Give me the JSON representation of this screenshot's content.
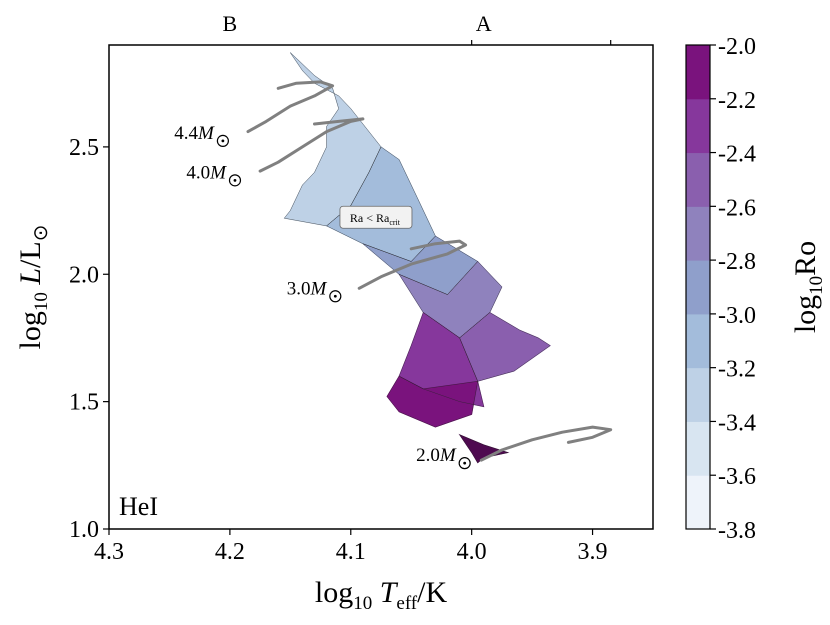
{
  "chart_data": {
    "type": "heatmap",
    "title": "",
    "x": {
      "label_parts": [
        "log",
        "10",
        "T",
        "eff",
        "/K"
      ],
      "lim": [
        4.3,
        3.85
      ],
      "ticks": [
        4.3,
        4.2,
        4.1,
        4.0,
        3.9
      ],
      "tick_labels": [
        "4.3",
        "4.2",
        "4.1",
        "4.0",
        "3.9"
      ]
    },
    "y": {
      "label_parts": [
        "log",
        "10",
        "L",
        "/L",
        "⊙"
      ],
      "lim": [
        1.0,
        2.9
      ],
      "ticks": [
        1.0,
        1.5,
        2.0,
        2.5
      ],
      "tick_labels": [
        "1.0",
        "1.5",
        "2.0",
        "2.5"
      ]
    },
    "top_axis": {
      "labels": [
        {
          "text": "B",
          "x": 4.2
        },
        {
          "text": "A",
          "x": 3.99
        }
      ],
      "ticks": [
        4.0,
        3.885
      ]
    },
    "colorbar": {
      "label_parts": [
        "log",
        "10",
        "Ro"
      ],
      "levels": [
        -3.8,
        -3.6,
        -3.4,
        -3.2,
        -3.0,
        -2.8,
        -2.6,
        -2.4,
        -2.2,
        -2.0
      ],
      "tick_labels": [
        "-3.8",
        "-3.6",
        "-3.4",
        "-3.2",
        "-3.0",
        "-2.8",
        "-2.6",
        "-2.4",
        "-2.2",
        "-2.0"
      ],
      "colors": [
        "#eef3fa",
        "#d8e5f1",
        "#bed1e6",
        "#a3bcdb",
        "#8f9fcb",
        "#8f82bd",
        "#8a5fae",
        "#86379c",
        "#7a137d",
        "#4e0a50"
      ]
    },
    "region_label": "HeI",
    "annotation_box": {
      "main": "Ra < Ra",
      "sub": "crit",
      "x": 4.08,
      "y": 2.22
    },
    "tracks": [
      {
        "name": "4.4M",
        "label": "4.4",
        "label_at": [
          4.2,
          2.555
        ],
        "points": [
          [
            4.185,
            2.56
          ],
          [
            4.17,
            2.6
          ],
          [
            4.15,
            2.66
          ],
          [
            4.13,
            2.7
          ],
          [
            4.115,
            2.74
          ],
          [
            4.125,
            2.755
          ],
          [
            4.145,
            2.75
          ],
          [
            4.16,
            2.73
          ]
        ]
      },
      {
        "name": "4.0M",
        "label": "4.0",
        "label_at": [
          4.19,
          2.4
        ],
        "points": [
          [
            4.175,
            2.405
          ],
          [
            4.16,
            2.44
          ],
          [
            4.14,
            2.5
          ],
          [
            4.12,
            2.56
          ],
          [
            4.1,
            2.6
          ],
          [
            4.09,
            2.61
          ],
          [
            4.11,
            2.6
          ],
          [
            4.13,
            2.59
          ]
        ]
      },
      {
        "name": "3.0M",
        "label": "3.0",
        "label_at": [
          4.107,
          1.945
        ],
        "points": [
          [
            4.093,
            1.945
          ],
          [
            4.075,
            1.99
          ],
          [
            4.05,
            2.04
          ],
          [
            4.02,
            2.08
          ],
          [
            4.005,
            2.115
          ],
          [
            4.01,
            2.13
          ],
          [
            4.03,
            2.12
          ],
          [
            4.05,
            2.1
          ]
        ]
      },
      {
        "name": "2.0M",
        "label": "2.0",
        "label_at": [
          4.0,
          1.29
        ],
        "points": [
          [
            3.992,
            1.27
          ],
          [
            3.975,
            1.31
          ],
          [
            3.95,
            1.35
          ],
          [
            3.925,
            1.38
          ],
          [
            3.9,
            1.4
          ],
          [
            3.885,
            1.39
          ],
          [
            3.9,
            1.36
          ],
          [
            3.92,
            1.34
          ]
        ]
      }
    ],
    "bands": [
      {
        "level": -3.4,
        "poly": [
          [
            4.15,
            2.87
          ],
          [
            4.13,
            2.78
          ],
          [
            4.115,
            2.73
          ],
          [
            4.11,
            2.65
          ],
          [
            4.12,
            2.58
          ],
          [
            4.12,
            2.5
          ],
          [
            4.13,
            2.4
          ],
          [
            4.14,
            2.35
          ],
          [
            4.15,
            2.25
          ],
          [
            4.155,
            2.22
          ],
          [
            4.12,
            2.19
          ],
          [
            4.1,
            2.27
          ],
          [
            4.085,
            2.4
          ],
          [
            4.075,
            2.5
          ],
          [
            4.09,
            2.59
          ],
          [
            4.1,
            2.65
          ],
          [
            4.11,
            2.7
          ],
          [
            4.13,
            2.75
          ],
          [
            4.14,
            2.8
          ]
        ]
      },
      {
        "level": -3.2,
        "poly": [
          [
            4.12,
            2.19
          ],
          [
            4.09,
            2.12
          ],
          [
            4.05,
            2.05
          ],
          [
            4.03,
            2.15
          ],
          [
            4.045,
            2.3
          ],
          [
            4.06,
            2.45
          ],
          [
            4.075,
            2.5
          ],
          [
            4.085,
            2.4
          ],
          [
            4.1,
            2.27
          ]
        ]
      },
      {
        "level": -3.0,
        "poly": [
          [
            4.09,
            2.12
          ],
          [
            4.06,
            2.0
          ],
          [
            4.02,
            1.92
          ],
          [
            3.995,
            2.05
          ],
          [
            4.03,
            2.15
          ],
          [
            4.05,
            2.05
          ]
        ]
      },
      {
        "level": -2.8,
        "poly": [
          [
            4.06,
            2.0
          ],
          [
            4.04,
            1.85
          ],
          [
            4.01,
            1.75
          ],
          [
            3.985,
            1.85
          ],
          [
            3.975,
            1.95
          ],
          [
            3.995,
            2.05
          ],
          [
            4.02,
            1.92
          ]
        ]
      },
      {
        "level": -2.6,
        "poly": [
          [
            3.985,
            1.85
          ],
          [
            3.96,
            1.78
          ],
          [
            3.945,
            1.75
          ],
          [
            3.935,
            1.72
          ],
          [
            3.965,
            1.62
          ],
          [
            3.995,
            1.58
          ],
          [
            4.01,
            1.75
          ]
        ]
      },
      {
        "level": -2.4,
        "poly": [
          [
            4.04,
            1.85
          ],
          [
            4.05,
            1.72
          ],
          [
            4.06,
            1.6
          ],
          [
            4.04,
            1.55
          ],
          [
            4.01,
            1.5
          ],
          [
            3.99,
            1.48
          ],
          [
            3.995,
            1.58
          ],
          [
            4.01,
            1.75
          ]
        ]
      },
      {
        "level": -2.2,
        "poly": [
          [
            4.06,
            1.6
          ],
          [
            4.07,
            1.52
          ],
          [
            4.06,
            1.46
          ],
          [
            4.03,
            1.4
          ],
          [
            4.0,
            1.45
          ],
          [
            3.995,
            1.58
          ],
          [
            4.04,
            1.55
          ]
        ]
      },
      {
        "level": -2.0,
        "poly": [
          [
            4.01,
            1.37
          ],
          [
            3.99,
            1.33
          ],
          [
            3.97,
            1.3
          ],
          [
            3.99,
            1.28
          ],
          [
            3.995,
            1.26
          ],
          [
            4.0,
            1.3
          ]
        ]
      }
    ]
  }
}
